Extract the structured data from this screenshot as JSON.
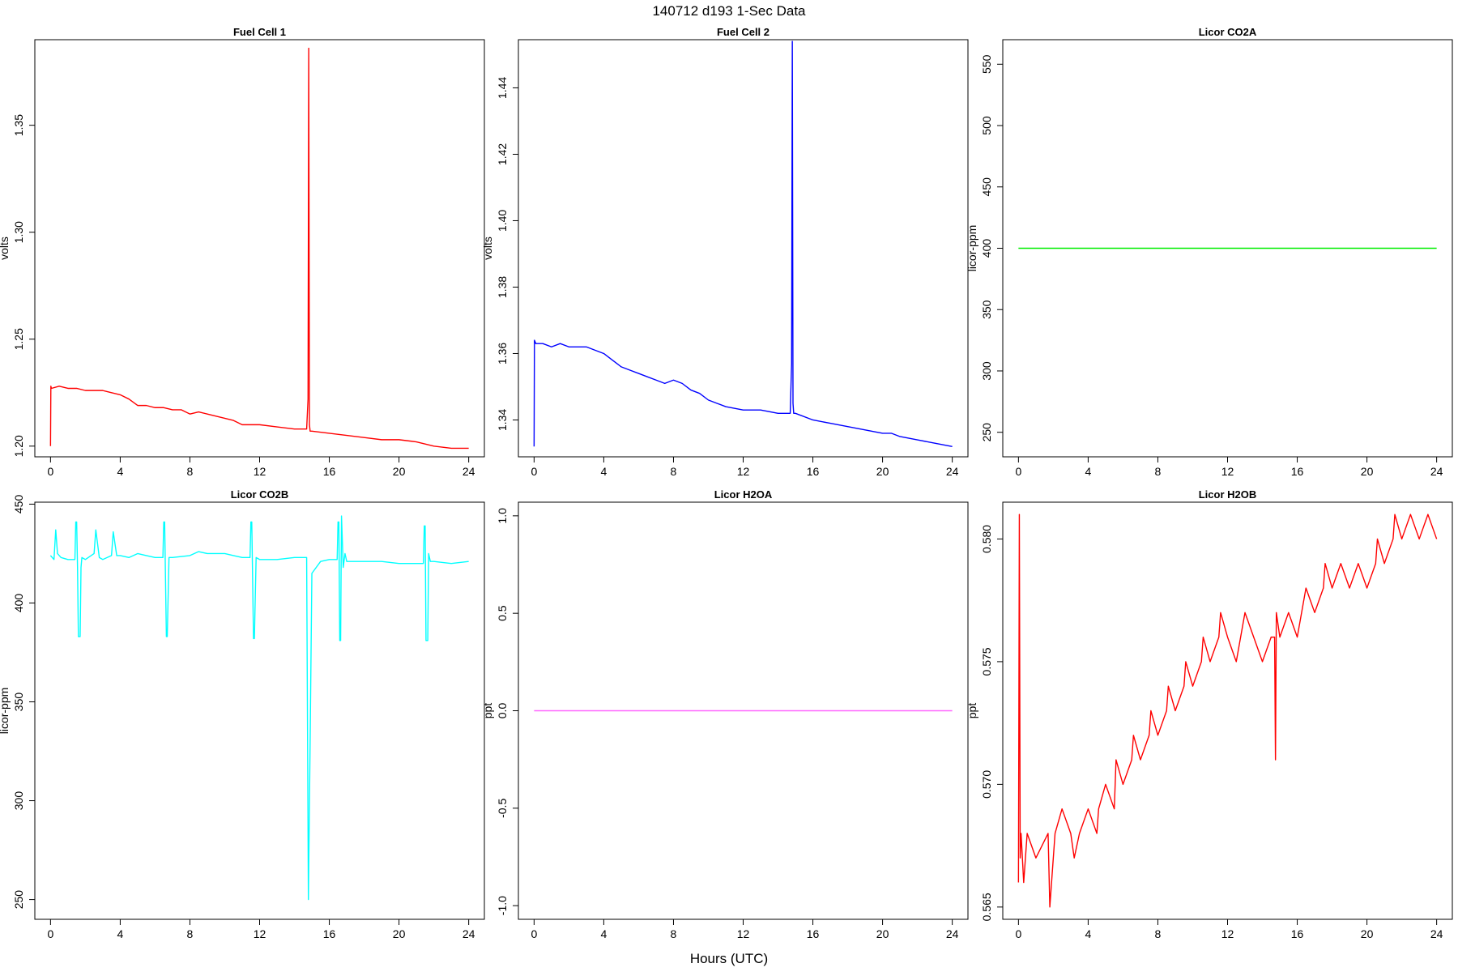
{
  "figure": {
    "title": "140712   d193   1-Sec Data",
    "xlabel": "Hours (UTC)"
  },
  "chart_data": [
    {
      "type": "line",
      "title": "Fuel Cell 1",
      "ylabel": "volts",
      "color": "#ff0000",
      "xlim": [
        -0.9,
        24.9
      ],
      "ylim": [
        1.195,
        1.39
      ],
      "xticks": [
        0,
        4,
        8,
        12,
        16,
        20,
        24
      ],
      "xtick_labels": [
        "0",
        "4",
        "8",
        "12",
        "16",
        "20",
        "24"
      ],
      "yticks": [
        1.2,
        1.25,
        1.3,
        1.35
      ],
      "ytick_labels": [
        "1.20",
        "1.25",
        "1.30",
        "1.35"
      ],
      "series": [
        {
          "x": [
            0,
            0.02,
            0.05,
            0.5,
            1,
            1.5,
            2,
            3,
            3.5,
            4,
            4.5,
            5,
            5.5,
            6,
            6.5,
            7,
            7.5,
            8,
            8.5,
            9,
            9.5,
            10,
            10.5,
            11,
            11.5,
            12,
            13,
            14,
            14.7,
            14.78,
            14.82,
            14.86,
            14.9,
            15,
            16,
            17,
            18,
            19,
            20,
            21,
            21.5,
            22,
            23,
            24
          ],
          "y": [
            1.2,
            1.228,
            1.227,
            1.228,
            1.227,
            1.227,
            1.226,
            1.226,
            1.225,
            1.224,
            1.222,
            1.219,
            1.219,
            1.218,
            1.218,
            1.217,
            1.217,
            1.215,
            1.216,
            1.215,
            1.214,
            1.213,
            1.212,
            1.21,
            1.21,
            1.21,
            1.209,
            1.208,
            1.208,
            1.222,
            1.386,
            1.21,
            1.207,
            1.207,
            1.206,
            1.205,
            1.204,
            1.203,
            1.203,
            1.202,
            1.201,
            1.2,
            1.199,
            1.199
          ]
        }
      ]
    },
    {
      "type": "line",
      "title": "Fuel Cell 2",
      "ylabel": "volts",
      "color": "#0000ff",
      "xlim": [
        -0.9,
        24.9
      ],
      "ylim": [
        1.3289,
        1.4545
      ],
      "xticks": [
        0,
        4,
        8,
        12,
        16,
        20,
        24
      ],
      "xtick_labels": [
        "0",
        "4",
        "8",
        "12",
        "16",
        "20",
        "24"
      ],
      "yticks": [
        1.34,
        1.36,
        1.38,
        1.4,
        1.42,
        1.44
      ],
      "ytick_labels": [
        "1.34",
        "1.36",
        "1.38",
        "1.40",
        "1.42",
        "1.44"
      ],
      "series": [
        {
          "x": [
            0,
            0.02,
            0.1,
            0.5,
            1,
            1.5,
            2,
            2.5,
            3,
            3.5,
            4,
            4.5,
            5,
            5.5,
            6,
            6.5,
            7,
            7.5,
            8,
            8.5,
            9,
            9.5,
            10,
            10.5,
            11,
            12,
            13,
            14,
            14.7,
            14.78,
            14.82,
            14.86,
            14.9,
            15,
            16,
            17,
            18,
            19,
            20,
            20.5,
            21,
            22,
            23,
            24
          ],
          "y": [
            1.332,
            1.364,
            1.363,
            1.363,
            1.362,
            1.363,
            1.362,
            1.362,
            1.362,
            1.361,
            1.36,
            1.358,
            1.356,
            1.355,
            1.354,
            1.353,
            1.352,
            1.351,
            1.352,
            1.351,
            1.349,
            1.348,
            1.346,
            1.345,
            1.344,
            1.343,
            1.343,
            1.342,
            1.342,
            1.357,
            1.454,
            1.345,
            1.342,
            1.342,
            1.34,
            1.339,
            1.338,
            1.337,
            1.336,
            1.336,
            1.335,
            1.334,
            1.333,
            1.332
          ]
        }
      ]
    },
    {
      "type": "line",
      "title": "Licor CO2A",
      "ylabel": "licor-ppm",
      "color": "#00ee00",
      "xlim": [
        -0.9,
        24.9
      ],
      "ylim": [
        230,
        570
      ],
      "xticks": [
        0,
        4,
        8,
        12,
        16,
        20,
        24
      ],
      "xtick_labels": [
        "0",
        "4",
        "8",
        "12",
        "16",
        "20",
        "24"
      ],
      "yticks": [
        250,
        300,
        350,
        400,
        450,
        500,
        550
      ],
      "ytick_labels": [
        "250",
        "300",
        "350",
        "400",
        "450",
        "500",
        "550"
      ],
      "series": [
        {
          "x": [
            0,
            24
          ],
          "y": [
            400,
            400
          ]
        }
      ]
    },
    {
      "type": "line",
      "title": "Licor CO2B",
      "ylabel": "licor-ppm",
      "color": "#00ffff",
      "xlim": [
        -0.9,
        24.9
      ],
      "ylim": [
        240,
        451
      ],
      "xticks": [
        0,
        4,
        8,
        12,
        16,
        20,
        24
      ],
      "xtick_labels": [
        "0",
        "4",
        "8",
        "12",
        "16",
        "20",
        "24"
      ],
      "yticks": [
        250,
        300,
        350,
        400,
        450
      ],
      "ytick_labels": [
        "250",
        "300",
        "350",
        "400",
        "450"
      ],
      "series": [
        {
          "x": [
            0,
            0.2,
            0.3,
            0.4,
            0.6,
            1,
            1.4,
            1.45,
            1.5,
            1.55,
            1.6,
            1.7,
            1.75,
            1.8,
            2,
            2.5,
            2.6,
            2.8,
            3,
            3.5,
            3.6,
            3.8,
            4,
            4.5,
            5,
            5.5,
            6,
            6.45,
            6.5,
            6.55,
            6.65,
            6.7,
            6.8,
            7,
            8,
            8.5,
            9,
            9.5,
            10,
            10.5,
            11,
            11.45,
            11.5,
            11.55,
            11.65,
            11.7,
            11.8,
            12,
            13,
            14,
            14.5,
            14.7,
            14.8,
            14.9,
            15,
            15.5,
            16,
            16.45,
            16.5,
            16.55,
            16.6,
            16.65,
            16.7,
            16.8,
            16.9,
            17,
            18,
            19,
            20,
            21,
            21.4,
            21.45,
            21.5,
            21.55,
            21.65,
            21.7,
            21.8,
            22,
            23,
            24
          ],
          "y": [
            424,
            422,
            437,
            425,
            423,
            422,
            422,
            441,
            441,
            418,
            383,
            383,
            418,
            423,
            422,
            425,
            437,
            423,
            422,
            424,
            436,
            424,
            424,
            423,
            425,
            424,
            423,
            423,
            441,
            441,
            383,
            383,
            423,
            423,
            424,
            426,
            425,
            425,
            425,
            424,
            423,
            423,
            441,
            441,
            382,
            382,
            423,
            422,
            422,
            423,
            423,
            423,
            250,
            330,
            415,
            421,
            422,
            422,
            441,
            441,
            381,
            381,
            444,
            418,
            425,
            421,
            421,
            421,
            420,
            420,
            420,
            439,
            439,
            381,
            381,
            425,
            421,
            421,
            420,
            421
          ]
        }
      ]
    },
    {
      "type": "line",
      "title": "Licor H2OA",
      "ylabel": "ppt",
      "color": "#ff66ff",
      "xlim": [
        -0.9,
        24.9
      ],
      "ylim": [
        -1.07,
        1.07
      ],
      "xticks": [
        0,
        4,
        8,
        12,
        16,
        20,
        24
      ],
      "xtick_labels": [
        "0",
        "4",
        "8",
        "12",
        "16",
        "20",
        "24"
      ],
      "yticks": [
        -1,
        -0.5,
        0,
        0.5,
        1
      ],
      "ytick_labels": [
        "-1.0",
        "-0.5",
        "0.0",
        "0.5",
        "1.0"
      ],
      "series": [
        {
          "x": [
            0,
            24
          ],
          "y": [
            0,
            0
          ]
        }
      ]
    },
    {
      "type": "line",
      "title": "Licor H2OB",
      "ylabel": "ppt",
      "color": "#ff0000",
      "xlim": [
        -0.9,
        24.9
      ],
      "ylim": [
        0.5645,
        0.5815
      ],
      "xticks": [
        0,
        4,
        8,
        12,
        16,
        20,
        24
      ],
      "xtick_labels": [
        "0",
        "4",
        "8",
        "12",
        "16",
        "20",
        "24"
      ],
      "yticks": [
        0.565,
        0.57,
        0.575,
        0.58
      ],
      "ytick_labels": [
        "0.565",
        "0.570",
        "0.575",
        "0.580"
      ],
      "series": [
        {
          "x": [
            0,
            0.05,
            0.1,
            0.15,
            0.3,
            0.5,
            1,
            1.7,
            1.8,
            2,
            2.1,
            2.5,
            3,
            3.2,
            3.5,
            4,
            4.5,
            4.6,
            5,
            5.5,
            5.6,
            6,
            6.5,
            6.6,
            7,
            7.5,
            7.6,
            8,
            8.5,
            8.6,
            9,
            9.5,
            9.6,
            10,
            10.5,
            10.6,
            11,
            11.5,
            11.6,
            12,
            12.5,
            13,
            13.5,
            14,
            14.5,
            14.7,
            14.75,
            14.8,
            15,
            15.5,
            16,
            16.5,
            17,
            17.5,
            17.6,
            18,
            18.5,
            19,
            19.5,
            20,
            20.5,
            20.6,
            21,
            21.5,
            21.6,
            22,
            22.5,
            23,
            23.5,
            24
          ],
          "y": [
            0.566,
            0.581,
            0.567,
            0.568,
            0.566,
            0.568,
            0.567,
            0.568,
            0.565,
            0.567,
            0.568,
            0.569,
            0.568,
            0.567,
            0.568,
            0.569,
            0.568,
            0.569,
            0.57,
            0.569,
            0.571,
            0.57,
            0.571,
            0.572,
            0.571,
            0.572,
            0.573,
            0.572,
            0.573,
            0.574,
            0.573,
            0.574,
            0.575,
            0.574,
            0.575,
            0.576,
            0.575,
            0.576,
            0.577,
            0.576,
            0.575,
            0.577,
            0.576,
            0.575,
            0.576,
            0.576,
            0.571,
            0.577,
            0.576,
            0.577,
            0.576,
            0.578,
            0.577,
            0.578,
            0.579,
            0.578,
            0.579,
            0.578,
            0.579,
            0.578,
            0.579,
            0.58,
            0.579,
            0.58,
            0.581,
            0.58,
            0.581,
            0.58,
            0.581,
            0.58
          ]
        }
      ]
    }
  ]
}
